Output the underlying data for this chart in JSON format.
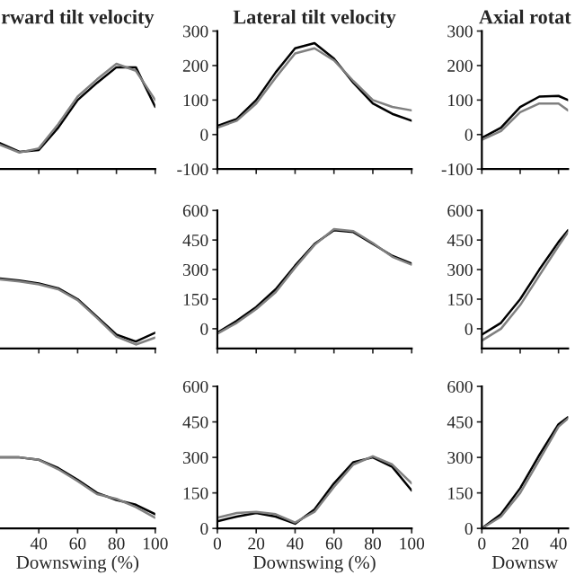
{
  "chart_data": [
    {
      "type": "line",
      "title": "rward tilt velocity",
      "x": [
        20,
        30,
        40,
        50,
        60,
        70,
        80,
        90,
        100
      ],
      "xlim": [
        20,
        100
      ],
      "xticks": [
        40,
        60,
        80,
        100
      ],
      "ylim": [
        -100,
        300
      ],
      "yticks": [
        -100,
        0,
        100,
        200,
        300
      ],
      "tick_labels": false,
      "series": [
        {
          "color": "#000000",
          "values": [
            -25,
            -50,
            -45,
            20,
            100,
            150,
            195,
            195,
            80
          ]
        },
        {
          "color": "#808080",
          "values": [
            -30,
            -52,
            -40,
            30,
            110,
            160,
            205,
            185,
            100
          ]
        }
      ]
    },
    {
      "type": "line",
      "title": "Lateral tilt velocity",
      "x": [
        0,
        10,
        20,
        30,
        40,
        50,
        60,
        70,
        80,
        90,
        100
      ],
      "xlim": [
        0,
        100
      ],
      "xticks": [
        0,
        20,
        40,
        60,
        80,
        100
      ],
      "ylim": [
        -100,
        300
      ],
      "yticks": [
        -100,
        0,
        100,
        200,
        300
      ],
      "tick_labels": "y",
      "series": [
        {
          "color": "#000000",
          "values": [
            25,
            45,
            100,
            180,
            250,
            265,
            220,
            150,
            90,
            60,
            40
          ]
        },
        {
          "color": "#808080",
          "values": [
            20,
            40,
            90,
            165,
            235,
            250,
            215,
            155,
            100,
            80,
            70
          ]
        }
      ]
    },
    {
      "type": "line",
      "title": "Axial rotat",
      "x": [
        0,
        10,
        20,
        30,
        40,
        45
      ],
      "xlim": [
        0,
        45
      ],
      "xticks": [
        0,
        20,
        40
      ],
      "ylim": [
        -100,
        300
      ],
      "yticks": [
        -100,
        0,
        100,
        200,
        300
      ],
      "tick_labels": "y",
      "series": [
        {
          "color": "#000000",
          "values": [
            -10,
            20,
            80,
            110,
            112,
            100
          ]
        },
        {
          "color": "#808080",
          "values": [
            -15,
            10,
            65,
            90,
            90,
            70
          ]
        }
      ]
    },
    {
      "type": "line",
      "x": [
        20,
        30,
        40,
        50,
        60,
        70,
        80,
        90,
        100
      ],
      "xlim": [
        20,
        100
      ],
      "xticks": [
        40,
        60,
        80,
        100
      ],
      "ylim": [
        -100,
        600
      ],
      "yticks": [
        0,
        150,
        300,
        450,
        600
      ],
      "tick_labels": false,
      "series": [
        {
          "color": "#000000",
          "values": [
            255,
            245,
            230,
            205,
            150,
            60,
            -30,
            -65,
            -20
          ]
        },
        {
          "color": "#808080",
          "values": [
            250,
            240,
            225,
            200,
            145,
            55,
            -40,
            -80,
            -45
          ]
        }
      ]
    },
    {
      "type": "line",
      "x": [
        0,
        10,
        20,
        30,
        40,
        50,
        60,
        70,
        80,
        90,
        100
      ],
      "xlim": [
        0,
        100
      ],
      "xticks": [
        0,
        20,
        40,
        60,
        80,
        100
      ],
      "ylim": [
        -100,
        600
      ],
      "yticks": [
        0,
        150,
        300,
        450,
        600
      ],
      "tick_labels": "y",
      "series": [
        {
          "color": "#000000",
          "values": [
            -20,
            40,
            110,
            200,
            320,
            430,
            500,
            490,
            430,
            370,
            330
          ]
        },
        {
          "color": "#808080",
          "values": [
            -25,
            30,
            100,
            185,
            310,
            425,
            505,
            495,
            435,
            365,
            325
          ]
        }
      ]
    },
    {
      "type": "line",
      "x": [
        0,
        10,
        20,
        30,
        40,
        45
      ],
      "xlim": [
        0,
        45
      ],
      "xticks": [
        0,
        20,
        40
      ],
      "ylim": [
        -100,
        600
      ],
      "yticks": [
        0,
        150,
        300,
        450,
        600
      ],
      "tick_labels": "y",
      "series": [
        {
          "color": "#000000",
          "values": [
            -30,
            30,
            150,
            300,
            440,
            500
          ]
        },
        {
          "color": "#808080",
          "values": [
            -60,
            0,
            120,
            270,
            420,
            490
          ]
        }
      ]
    },
    {
      "type": "line",
      "xlabel": "Downswing (%)",
      "x": [
        20,
        30,
        40,
        50,
        60,
        70,
        80,
        90,
        100
      ],
      "xlim": [
        20,
        100
      ],
      "xticks": [
        40,
        60,
        80,
        100
      ],
      "ylim": [
        0,
        600
      ],
      "yticks": [
        0,
        150,
        300,
        450,
        600
      ],
      "tick_labels": "x",
      "series": [
        {
          "color": "#000000",
          "values": [
            300,
            300,
            290,
            255,
            205,
            150,
            120,
            100,
            60
          ]
        },
        {
          "color": "#808080",
          "values": [
            300,
            300,
            290,
            250,
            200,
            145,
            125,
            90,
            45
          ]
        }
      ]
    },
    {
      "type": "line",
      "xlabel": "Downswing (%)",
      "x": [
        0,
        10,
        20,
        30,
        40,
        50,
        60,
        70,
        80,
        90,
        100
      ],
      "xlim": [
        0,
        100
      ],
      "xticks": [
        0,
        20,
        40,
        60,
        80,
        100
      ],
      "ylim": [
        0,
        600
      ],
      "yticks": [
        0,
        150,
        300,
        450,
        600
      ],
      "series": [
        {
          "color": "#000000",
          "values": [
            30,
            50,
            65,
            50,
            20,
            80,
            190,
            280,
            300,
            260,
            160
          ]
        },
        {
          "color": "#808080",
          "values": [
            45,
            65,
            70,
            60,
            25,
            70,
            175,
            270,
            305,
            270,
            190
          ]
        }
      ]
    },
    {
      "type": "line",
      "xlabel": "Downsw",
      "x": [
        0,
        10,
        20,
        30,
        40,
        45
      ],
      "xlim": [
        0,
        45
      ],
      "xticks": [
        0,
        20,
        40
      ],
      "ylim": [
        0,
        600
      ],
      "yticks": [
        0,
        150,
        300,
        450,
        600
      ],
      "series": [
        {
          "color": "#000000",
          "values": [
            0,
            60,
            170,
            310,
            440,
            470
          ]
        },
        {
          "color": "#808080",
          "values": [
            0,
            50,
            150,
            290,
            430,
            465
          ]
        }
      ]
    }
  ]
}
